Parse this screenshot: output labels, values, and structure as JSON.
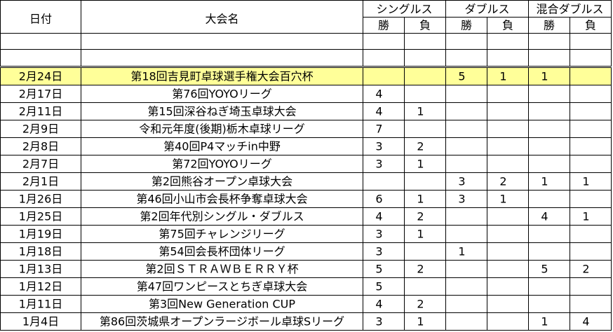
{
  "header": {
    "date": "日付",
    "name": "大会名",
    "groups": [
      {
        "title": "シングルス",
        "win": "勝",
        "loss": "負"
      },
      {
        "title": "ダブルス",
        "win": "勝",
        "loss": "負"
      },
      {
        "title": "混合ダブルス",
        "win": "勝",
        "loss": "負"
      }
    ]
  },
  "table": {
    "rows": [
      {
        "date": "2月24日",
        "name": "第18回吉見町卓球選手権大会百穴杯",
        "results": [
          null,
          null,
          5,
          1,
          1,
          null
        ],
        "highlighted": true
      },
      {
        "date": "2月17日",
        "name": "第76回YOYOリーグ",
        "results": [
          4,
          null,
          null,
          null,
          null,
          null
        ]
      },
      {
        "date": "2月11日",
        "name": "第15回深谷ねぎ埼玉卓球大会",
        "results": [
          4,
          1,
          null,
          null,
          null,
          null
        ]
      },
      {
        "date": "2月9日",
        "name": "令和元年度(後期)栃木卓球リーグ",
        "results": [
          7,
          null,
          null,
          null,
          null,
          null
        ]
      },
      {
        "date": "2月8日",
        "name": "第40回P4マッチin中野",
        "results": [
          3,
          2,
          null,
          null,
          null,
          null
        ]
      },
      {
        "date": "2月7日",
        "name": "第72回YOYOリーグ",
        "results": [
          3,
          1,
          null,
          null,
          null,
          null
        ]
      },
      {
        "date": "2月1日",
        "name": "第2回熊谷オープン卓球大会",
        "results": [
          null,
          null,
          3,
          2,
          1,
          1
        ]
      },
      {
        "date": "1月26日",
        "name": "第46回小山市会長杯争奪卓球大会",
        "results": [
          6,
          1,
          3,
          1,
          null,
          null
        ]
      },
      {
        "date": "1月25日",
        "name": "第2回年代別シングル・ダブルス",
        "results": [
          4,
          2,
          null,
          null,
          4,
          1
        ]
      },
      {
        "date": "1月19日",
        "name": "第75回チャレンジリーグ",
        "results": [
          3,
          1,
          null,
          null,
          null,
          null
        ]
      },
      {
        "date": "1月18日",
        "name": "第54回会長杯団体リーグ",
        "results": [
          3,
          null,
          1,
          null,
          null,
          null
        ]
      },
      {
        "date": "1月13日",
        "name": "第2回ＳＴＲＡＷＢＥＲＲＹ杯",
        "results": [
          5,
          2,
          null,
          null,
          5,
          2
        ]
      },
      {
        "date": "1月12日",
        "name": "第47回ワンピースとちぎ卓球大会",
        "results": [
          5,
          null,
          null,
          null,
          null,
          null
        ]
      },
      {
        "date": "1月11日",
        "name": "第3回New Generation CUP",
        "results": [
          4,
          2,
          null,
          null,
          null,
          null
        ]
      },
      {
        "date": "1月4日",
        "name": "第86回茨城県オープンラージボール卓球Sリーグ",
        "results": [
          3,
          1,
          null,
          null,
          1,
          4
        ]
      }
    ]
  }
}
